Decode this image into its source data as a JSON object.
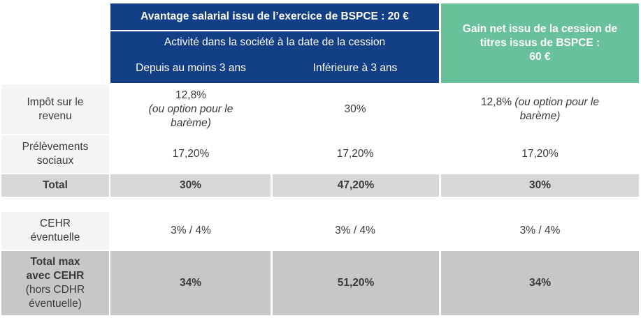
{
  "header": {
    "bspce_title": "Avantage salarial issu de l’exercice de BSPCE : 20  €",
    "activity_label": "Activité dans la société à la date de la cession",
    "col_3ans_plus": "Depuis au moins 3 ans",
    "col_3ans_moins": "Inférieure à 3 ans",
    "gain_net_line1": "Gain net issu de la cession de",
    "gain_net_line2": "titres issus de BSPCE :",
    "gain_net_line3": "60 €"
  },
  "rows": {
    "impot": {
      "label_l1": "Impôt sur le",
      "label_l2": "revenu",
      "c1_l1": "12,8%",
      "c1_l2": "(ou option pour le",
      "c1_l3": "barème)",
      "c2": "30%",
      "c3_plain": "12,8% ",
      "c3_ital_a": "(ou option pour le",
      "c3_ital_b": "barème)"
    },
    "prelevements": {
      "label_l1": "Prélèvements",
      "label_l2": "sociaux",
      "c1": "17,20%",
      "c2": "17,20%",
      "c3": "17,20%"
    },
    "total": {
      "label": "Total",
      "c1": "30%",
      "c2": "47,20%",
      "c3": "30%"
    },
    "cehr": {
      "label_l1": "CEHR",
      "label_l2": "éventuelle",
      "c1": "3% / 4%",
      "c2": "3% / 4%",
      "c3": "3% / 4%"
    },
    "total_max": {
      "label_l1": "Total max",
      "label_l2": "avec CEHR",
      "label_l3": "(hors CDHR",
      "label_l4": "éventuelle)",
      "c1": "34%",
      "c2": "51,20%",
      "c3": "34%"
    }
  }
}
